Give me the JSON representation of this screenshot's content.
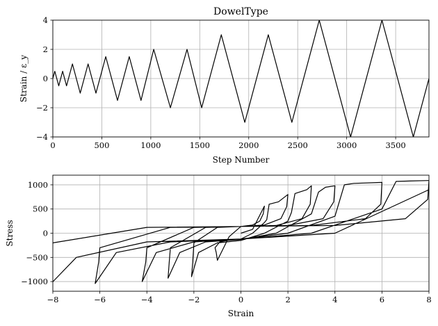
{
  "chart_data": [
    {
      "type": "line",
      "title": "DowelType",
      "xlabel": "Step Number",
      "ylabel": "Strain / ε_y",
      "xlim": [
        0,
        3840
      ],
      "ylim": [
        -4,
        4
      ],
      "xticks": [
        "0",
        "500",
        "1000",
        "1500",
        "2000",
        "2500",
        "3000",
        "3500"
      ],
      "yticks": [
        "−4",
        "−2",
        "0",
        "2",
        "4"
      ],
      "grid": true,
      "series": [
        {
          "x": [
            0,
            20,
            60,
            100,
            140,
            200,
            280,
            360,
            440,
            540,
            660,
            780,
            900,
            1030,
            1200,
            1370,
            1520,
            1720,
            1960,
            2200,
            2440,
            2720,
            3040,
            3360,
            3680,
            3840
          ],
          "y": [
            0,
            0.5,
            -0.5,
            0.5,
            -0.5,
            1,
            -1,
            1,
            -1,
            1.5,
            -1.5,
            1.5,
            -1.5,
            2,
            -2,
            2,
            -2,
            3,
            -3,
            3,
            -3,
            4,
            -4,
            4,
            -4,
            0
          ]
        }
      ]
    },
    {
      "type": "line",
      "xlabel": "Strain",
      "ylabel": "Stress",
      "xlim": [
        -8,
        8
      ],
      "ylim": [
        -1200,
        1200
      ],
      "xticks": [
        "−8",
        "−6",
        "−4",
        "−2",
        "0",
        "2",
        "4",
        "6",
        "8"
      ],
      "yticks": [
        "−1000",
        "−500",
        "0",
        "500",
        "1000"
      ],
      "grid": true,
      "series": [
        {
          "x": [
            0,
            0.5,
            1,
            0.95,
            0.8,
            0.5,
            0,
            -0.5,
            -1,
            -1.05,
            -1.1,
            -0.9,
            -0.5,
            0,
            0.5,
            1,
            1.1,
            1.2,
            1.6,
            2,
            1.95,
            1.7,
            1,
            0,
            -1,
            -2,
            -2.05,
            -2.1,
            -1.8,
            -1,
            0,
            1,
            2,
            2.15,
            2.3,
            2.8,
            3,
            2.95,
            2.6,
            1.5,
            0,
            -1.5,
            -3,
            -3.05,
            -3.1,
            -2.6,
            -1.5,
            0,
            1.5,
            3,
            3.3,
            3.6,
            4,
            3.95,
            3.5,
            2,
            0,
            -2,
            -4,
            -4.05,
            -4.2,
            -3.6,
            -2,
            0,
            2,
            4,
            4.4,
            4.8,
            6,
            5.95,
            5.3,
            3,
            0,
            -3,
            -6,
            -6.05,
            -6.2,
            -5.3,
            -3,
            0,
            3,
            6,
            6.6,
            7.2,
            8,
            7.95,
            7,
            4,
            0,
            -4,
            -8,
            -8.05,
            -8.15,
            -7,
            -4,
            0,
            4,
            8
          ],
          "y": [
            0,
            80,
            560,
            400,
            250,
            170,
            140,
            -70,
            -560,
            -400,
            -300,
            -180,
            -140,
            -120,
            0,
            220,
            280,
            600,
            650,
            800,
            550,
            300,
            170,
            140,
            120,
            -200,
            -600,
            -900,
            -400,
            -200,
            -150,
            0,
            250,
            430,
            820,
            900,
            980,
            600,
            300,
            160,
            140,
            120,
            -300,
            -600,
            -930,
            -400,
            -180,
            -130,
            0,
            400,
            850,
            950,
            980,
            650,
            300,
            160,
            140,
            120,
            -300,
            -600,
            -1000,
            -400,
            -180,
            -120,
            0,
            350,
            1000,
            1030,
            1050,
            600,
            300,
            160,
            140,
            120,
            -300,
            -600,
            -1040,
            -400,
            -180,
            -120,
            0,
            500,
            1070,
            1080,
            1090,
            700,
            300,
            160,
            140,
            120,
            -200,
            -800,
            -1080,
            -500,
            -180,
            -120,
            0,
            900
          ]
        }
      ]
    }
  ]
}
